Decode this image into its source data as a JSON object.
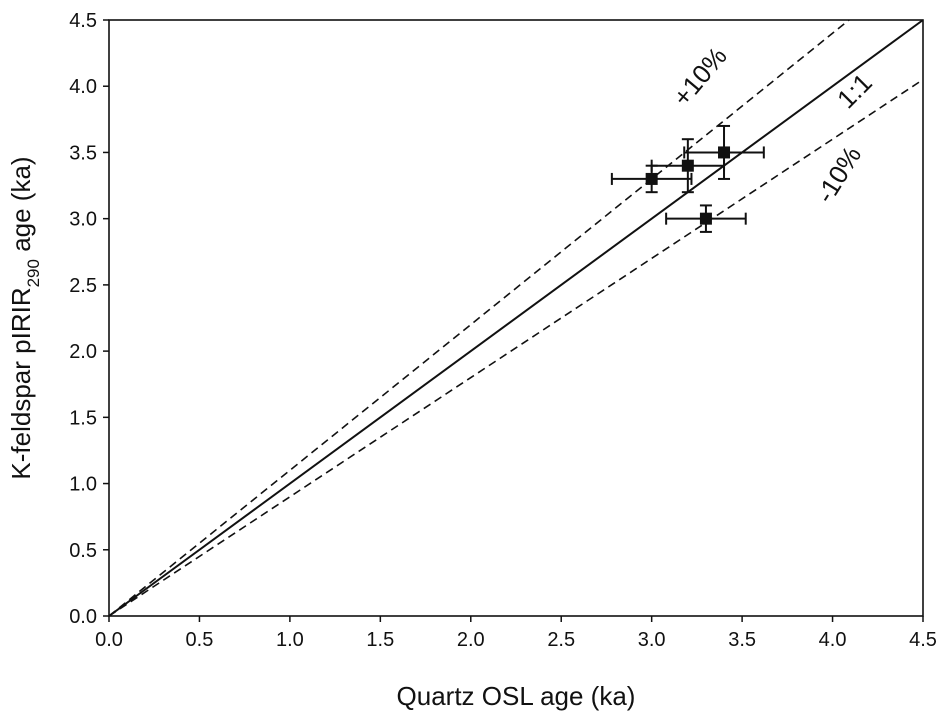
{
  "chart_data": {
    "type": "scatter",
    "xlabel": "Quartz OSL age (ka)",
    "ylabel": {
      "prefix": "K-feldspar pIRIR",
      "subscript": "290",
      "suffix": " age (ka)"
    },
    "xlim": [
      0.0,
      4.5
    ],
    "ylim": [
      0.0,
      4.5
    ],
    "xticks": [
      "0.0",
      "0.5",
      "1.0",
      "1.5",
      "2.0",
      "2.5",
      "3.0",
      "3.5",
      "4.0",
      "4.5"
    ],
    "yticks": [
      "0.0",
      "0.5",
      "1.0",
      "1.5",
      "2.0",
      "2.5",
      "3.0",
      "3.5",
      "4.0",
      "4.5"
    ],
    "grid": false,
    "points": [
      {
        "x": 3.0,
        "y": 3.3,
        "xerr": 0.22,
        "yerr": 0.1
      },
      {
        "x": 3.2,
        "y": 3.4,
        "xerr": 0.2,
        "yerr": 0.2
      },
      {
        "x": 3.4,
        "y": 3.5,
        "xerr": 0.22,
        "yerr": 0.2
      },
      {
        "x": 3.3,
        "y": 3.0,
        "xerr": 0.22,
        "yerr": 0.1
      }
    ],
    "reference_lines": [
      {
        "label": "1:1",
        "slope": 1.0,
        "style": "solid"
      },
      {
        "label": "+10%",
        "slope": 1.1,
        "style": "dashed"
      },
      {
        "label": "-10%",
        "slope": 0.9,
        "style": "dashed"
      }
    ]
  }
}
